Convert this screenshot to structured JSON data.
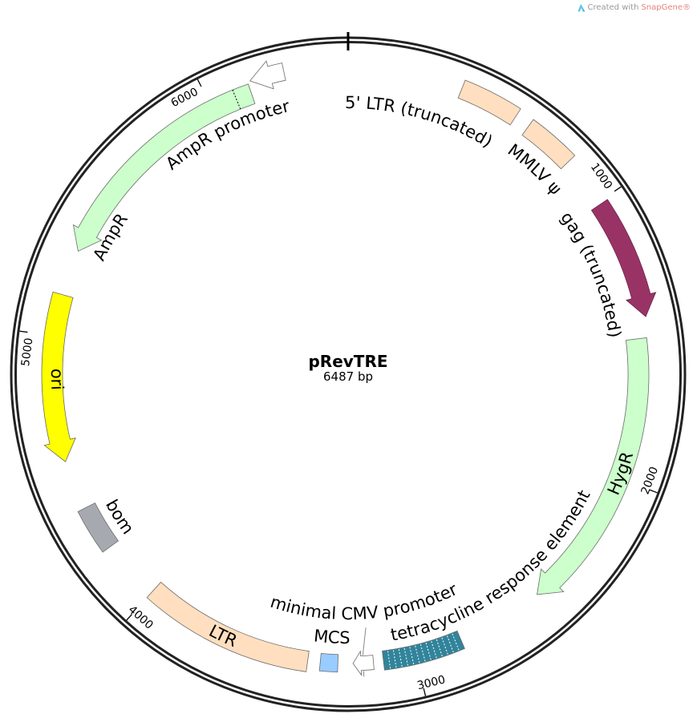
{
  "credit": {
    "prefix": "Created with ",
    "brand": "SnapGene®",
    "logo_icon": "snapgene-logo-icon"
  },
  "plasmid": {
    "name": "pRevTRE",
    "length_label": "6487 bp",
    "length_bp": 6487
  },
  "ticks": [
    {
      "bp": 1000,
      "label": "1000"
    },
    {
      "bp": 2000,
      "label": "2000"
    },
    {
      "bp": 3000,
      "label": "3000"
    },
    {
      "bp": 4000,
      "label": "4000"
    },
    {
      "bp": 5000,
      "label": "5000"
    },
    {
      "bp": 6000,
      "label": "6000"
    }
  ],
  "features": [
    {
      "id": "ltr5",
      "label": "5' LTR (truncated)",
      "start": 391,
      "end": 595,
      "direction": "none",
      "color": "#ffdfbf"
    },
    {
      "id": "mmlv",
      "label": "MMLV ψ",
      "start": 649,
      "end": 829,
      "direction": "none",
      "color": "#ffdfbf"
    },
    {
      "id": "gag",
      "label": "gag (truncated)",
      "start": 1009,
      "end": 1424,
      "direction": "forward",
      "color": "#993366"
    },
    {
      "id": "hygr",
      "label": "HygR",
      "start": 1496,
      "end": 2512,
      "direction": "forward",
      "color": "#ccffcc"
    },
    {
      "id": "tre",
      "label": "tetracycline response element",
      "start": 2829,
      "end": 3117,
      "direction": "none",
      "color": "#31849b"
    },
    {
      "id": "mincmv",
      "label": "minimal CMV promoter",
      "start": 3153,
      "end": 3226,
      "direction": "forward",
      "color": "#ffffff"
    },
    {
      "id": "mcs",
      "label": "MCS",
      "start": 3280,
      "end": 3343,
      "direction": "none",
      "color": "#99ccff"
    },
    {
      "id": "ltr",
      "label": "LTR",
      "start": 3388,
      "end": 4000,
      "direction": "none",
      "color": "#ffdfbf"
    },
    {
      "id": "bom",
      "label": "bom",
      "start": 4217,
      "end": 4379,
      "direction": "none",
      "color": "#a6aab0"
    },
    {
      "id": "ori",
      "label": "ori",
      "start": 4555,
      "end": 5146,
      "direction": "reverse",
      "color": "#ffff00"
    },
    {
      "id": "ampr",
      "label": "AmpR",
      "start": 5307,
      "end": 6145,
      "direction": "reverse",
      "color": "#ccffcc",
      "boundary_bp": 6089
    },
    {
      "id": "amprprom",
      "label": "AmpR promoter",
      "start": 6154,
      "end": 6271,
      "direction": "reverse",
      "color": "#ffffff"
    }
  ]
}
